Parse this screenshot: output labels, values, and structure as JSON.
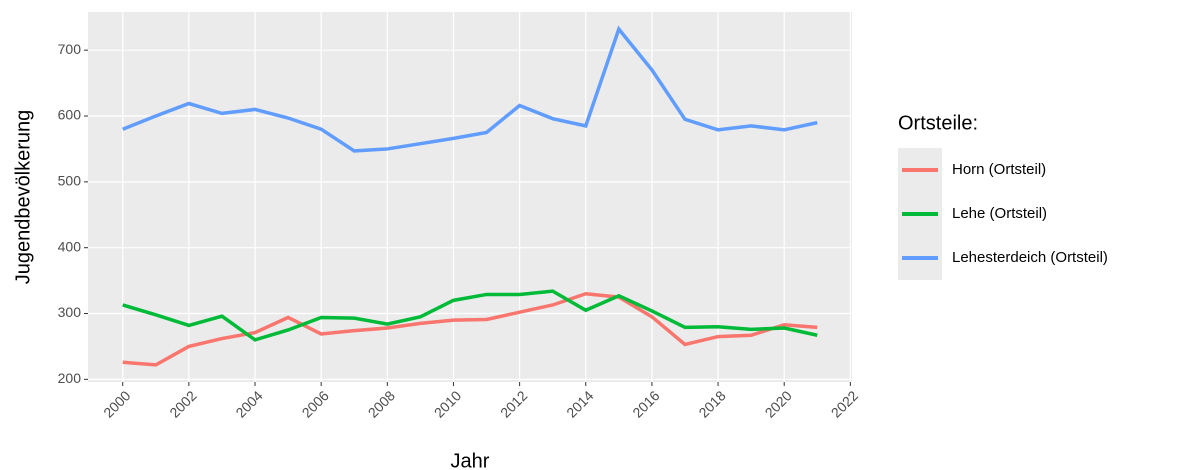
{
  "chart_data": {
    "type": "line",
    "x_label": "Jahr",
    "y_label": "Jugendbevölkerung",
    "legend_title": "Ortsteile:",
    "x": [
      2000,
      2001,
      2002,
      2003,
      2004,
      2005,
      2006,
      2007,
      2008,
      2009,
      2010,
      2011,
      2012,
      2013,
      2014,
      2015,
      2016,
      2017,
      2018,
      2019,
      2020,
      2021
    ],
    "series": [
      {
        "name": "Horn (Ortsteil)",
        "color": "#f8766d",
        "values": [
          226,
          222,
          250,
          262,
          271,
          294,
          269,
          274,
          278,
          285,
          290,
          291,
          302,
          313,
          330,
          325,
          295,
          253,
          265,
          267,
          283,
          279
        ]
      },
      {
        "name": "Lehe (Ortsteil)",
        "color": "#00ba38",
        "values": [
          313,
          298,
          282,
          296,
          260,
          275,
          294,
          293,
          284,
          295,
          320,
          329,
          329,
          334,
          305,
          327,
          304,
          279,
          280,
          276,
          278,
          267
        ]
      },
      {
        "name": "Lehesterdeich (Ortsteil)",
        "color": "#619cff",
        "values": [
          580,
          600,
          619,
          604,
          610,
          597,
          580,
          547,
          550,
          558,
          566,
          575,
          616,
          596,
          585,
          732,
          670,
          595,
          579,
          585,
          579,
          590
        ]
      }
    ],
    "xlim": [
      1998.95,
      2022.05
    ],
    "xticks": [
      2000,
      2002,
      2004,
      2006,
      2008,
      2010,
      2012,
      2014,
      2016,
      2018,
      2020,
      2022
    ],
    "ylim": [
      196,
      758
    ],
    "yticks": [
      200,
      300,
      400,
      500,
      600,
      700
    ],
    "grid": true,
    "legend": "right"
  }
}
